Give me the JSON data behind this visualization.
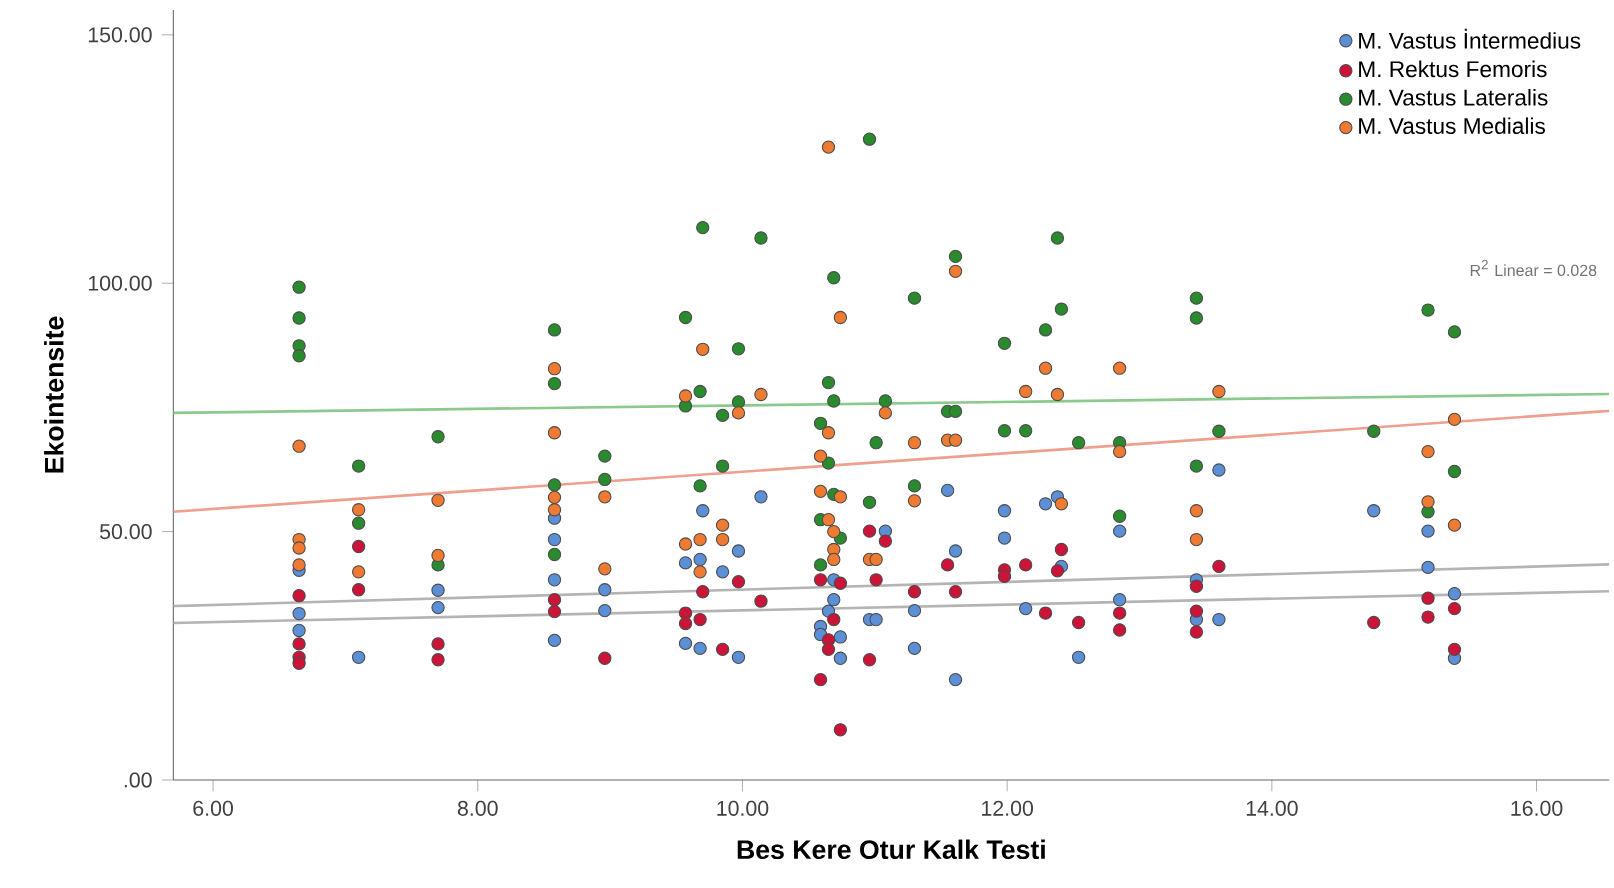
{
  "chart_data": {
    "type": "scatter",
    "xlabel": "Bes Kere Otur Kalk Testi",
    "ylabel": "Ekointensite",
    "xlim": [
      5.7,
      16.55
    ],
    "ylim": [
      0,
      155
    ],
    "xticks": [
      {
        "value": 6,
        "label": "6.00"
      },
      {
        "value": 8,
        "label": "8.00"
      },
      {
        "value": 10,
        "label": "10.00"
      },
      {
        "value": 12,
        "label": "12.00"
      },
      {
        "value": 14,
        "label": "14.00"
      },
      {
        "value": 16,
        "label": "16.00"
      }
    ],
    "yticks": [
      {
        "value": 0,
        "label": ".00"
      },
      {
        "value": 50,
        "label": "50.00"
      },
      {
        "value": 100,
        "label": "100.00"
      },
      {
        "value": 150,
        "label": "150.00"
      }
    ],
    "grid": false,
    "legend": "top right",
    "annotations": [
      "R$^{2}$ Linear = 0.028"
    ],
    "series": [
      {
        "name": "M. Vastus İntermedius",
        "marker": "circle",
        "color": "#5b8fd6",
        "x": [
          6.65,
          6.65,
          6.65,
          7.1,
          7.7,
          7.7,
          8.58,
          8.58,
          8.58,
          8.58,
          8.96,
          8.96,
          9.57,
          9.57,
          9.68,
          9.68,
          9.7,
          9.85,
          9.97,
          9.97,
          10.14,
          10.59,
          10.59,
          10.65,
          10.69,
          10.69,
          10.74,
          10.74,
          10.96,
          11.01,
          11.08,
          11.3,
          11.3,
          11.55,
          11.61,
          11.61,
          11.98,
          11.98,
          12.14,
          12.29,
          12.38,
          12.41,
          12.54,
          12.85,
          12.85,
          13.43,
          13.43,
          13.6,
          13.6,
          14.77,
          15.18,
          15.18,
          15.38,
          15.38
        ],
        "values": [
          42.2,
          33.5,
          30.1,
          24.7,
          38.2,
          34.7,
          52.7,
          48.4,
          40.3,
          28.1,
          38.3,
          34.1,
          43.7,
          27.5,
          44.4,
          26.5,
          54.2,
          41.9,
          46.1,
          24.7,
          57,
          30.9,
          29.3,
          34,
          40.3,
          36.3,
          28.8,
          24.5,
          32.3,
          32.3,
          50.1,
          34.1,
          26.5,
          58.3,
          46.1,
          20.2,
          54.2,
          48.7,
          34.5,
          55.6,
          57,
          43,
          24.7,
          50.1,
          36.3,
          40.3,
          32.3,
          62.4,
          32.3,
          54.2,
          50.1,
          42.8,
          37.5,
          24.5
        ]
      },
      {
        "name": "M. Rektus Femoris",
        "marker": "circle",
        "color": "#cc1338",
        "x": [
          6.65,
          6.65,
          6.65,
          6.65,
          7.1,
          7.1,
          7.7,
          7.7,
          8.58,
          8.58,
          8.96,
          9.57,
          9.57,
          9.68,
          9.7,
          9.85,
          9.97,
          10.14,
          10.59,
          10.59,
          10.65,
          10.65,
          10.69,
          10.74,
          10.74,
          10.96,
          10.96,
          11.01,
          11.08,
          11.3,
          11.55,
          11.61,
          11.98,
          11.98,
          12.14,
          12.29,
          12.38,
          12.41,
          12.54,
          12.85,
          12.85,
          13.43,
          13.43,
          13.43,
          13.6,
          14.77,
          15.18,
          15.18,
          15.38,
          15.38
        ],
        "values": [
          37.1,
          27.4,
          24.7,
          23.5,
          47,
          38.3,
          27.4,
          24.2,
          36.3,
          33.9,
          24.5,
          33.6,
          31.5,
          32.3,
          37.9,
          26.3,
          39.9,
          36,
          40.3,
          20.2,
          28.2,
          26.3,
          32.3,
          39.6,
          10.1,
          50.1,
          24.2,
          40.3,
          48.1,
          37.9,
          43.3,
          37.9,
          42.3,
          41,
          43.3,
          33.6,
          42.1,
          46.4,
          31.7,
          33.6,
          30.2,
          39,
          34,
          29.8,
          43,
          31.7,
          36.6,
          32.8,
          34.5,
          26.3
        ]
      },
      {
        "name": "M. Vastus Lateralis",
        "marker": "circle",
        "color": "#2a8a2e",
        "x": [
          6.65,
          6.65,
          6.65,
          6.65,
          7.1,
          7.1,
          7.7,
          7.7,
          8.58,
          8.58,
          8.58,
          8.58,
          8.96,
          8.96,
          9.57,
          9.57,
          9.68,
          9.68,
          9.7,
          9.85,
          9.85,
          9.97,
          9.97,
          10.14,
          10.59,
          10.59,
          10.59,
          10.65,
          10.65,
          10.69,
          10.69,
          10.69,
          10.74,
          10.96,
          10.96,
          11.01,
          11.08,
          11.3,
          11.3,
          11.55,
          11.61,
          11.61,
          11.98,
          11.98,
          12.14,
          12.29,
          12.38,
          12.41,
          12.54,
          12.85,
          12.85,
          13.43,
          13.43,
          13.43,
          13.6,
          14.77,
          15.18,
          15.18,
          15.38,
          15.38
        ],
        "values": [
          99.2,
          93,
          87.4,
          85.4,
          63.2,
          51.7,
          69.1,
          43.3,
          90.6,
          79.8,
          59.4,
          45.4,
          65.2,
          60.5,
          93.1,
          75.3,
          78.2,
          59.2,
          111.2,
          73.4,
          63.2,
          86.8,
          76.1,
          109.1,
          71.8,
          52.4,
          43.3,
          80,
          63.8,
          101.1,
          76.3,
          57.5,
          48.7,
          129,
          55.9,
          67.9,
          76.3,
          97,
          59.2,
          74.2,
          105.4,
          74.2,
          87.9,
          70.3,
          70.3,
          90.6,
          109.1,
          94.8,
          67.9,
          67.9,
          53.1,
          97,
          93,
          63.2,
          70.2,
          70.2,
          94.6,
          54,
          90.2,
          62.1
        ]
      },
      {
        "name": "M. Vastus Medialis",
        "marker": "circle",
        "color": "#ef7a32",
        "x": [
          6.65,
          6.65,
          6.65,
          6.65,
          7.1,
          7.1,
          7.7,
          7.7,
          8.58,
          8.58,
          8.58,
          8.58,
          8.96,
          8.96,
          9.57,
          9.57,
          9.68,
          9.68,
          9.7,
          9.85,
          9.85,
          9.97,
          10.14,
          10.59,
          10.59,
          10.65,
          10.65,
          10.65,
          10.69,
          10.69,
          10.69,
          10.74,
          10.74,
          10.96,
          11.01,
          11.08,
          11.3,
          11.3,
          11.55,
          11.61,
          11.61,
          12.14,
          12.29,
          12.38,
          12.41,
          12.85,
          12.85,
          13.43,
          13.43,
          13.6,
          15.18,
          15.18,
          15.38,
          15.38
        ],
        "values": [
          67.2,
          48.4,
          46.7,
          43.3,
          54.4,
          41.9,
          56.3,
          45.2,
          82.8,
          69.9,
          56.9,
          54.4,
          57,
          42.5,
          77.3,
          47.5,
          48.4,
          41.9,
          86.7,
          51.3,
          48.4,
          73.9,
          77.6,
          65.2,
          58.1,
          127.4,
          69.9,
          52.4,
          50,
          46.4,
          44.4,
          93.1,
          57,
          44.4,
          44.4,
          73.9,
          67.9,
          56.2,
          68.4,
          102.4,
          68.4,
          78.2,
          82.9,
          77.6,
          55.6,
          82.9,
          66.1,
          54.2,
          48.4,
          78.2,
          66.1,
          56,
          72.6,
          51.3
        ]
      },
      {
        "type": "line",
        "marker": "none",
        "color": "#b4b4b4",
        "x": [
          5.7,
          16.55
        ],
        "values": [
          35,
          43.4
        ]
      },
      {
        "type": "line",
        "marker": "none",
        "color": "#b4b4b4",
        "x": [
          5.7,
          16.55
        ],
        "values": [
          31.6,
          38
        ]
      },
      {
        "type": "line",
        "marker": "none",
        "color": "#ee9f8e",
        "x": [
          5.7,
          16.55
        ],
        "values": [
          54,
          74.3
        ]
      },
      {
        "type": "line",
        "marker": "none",
        "color": "#8cc98c",
        "x": [
          5.7,
          16.55
        ],
        "values": [
          73.9,
          77.7
        ]
      }
    ]
  }
}
